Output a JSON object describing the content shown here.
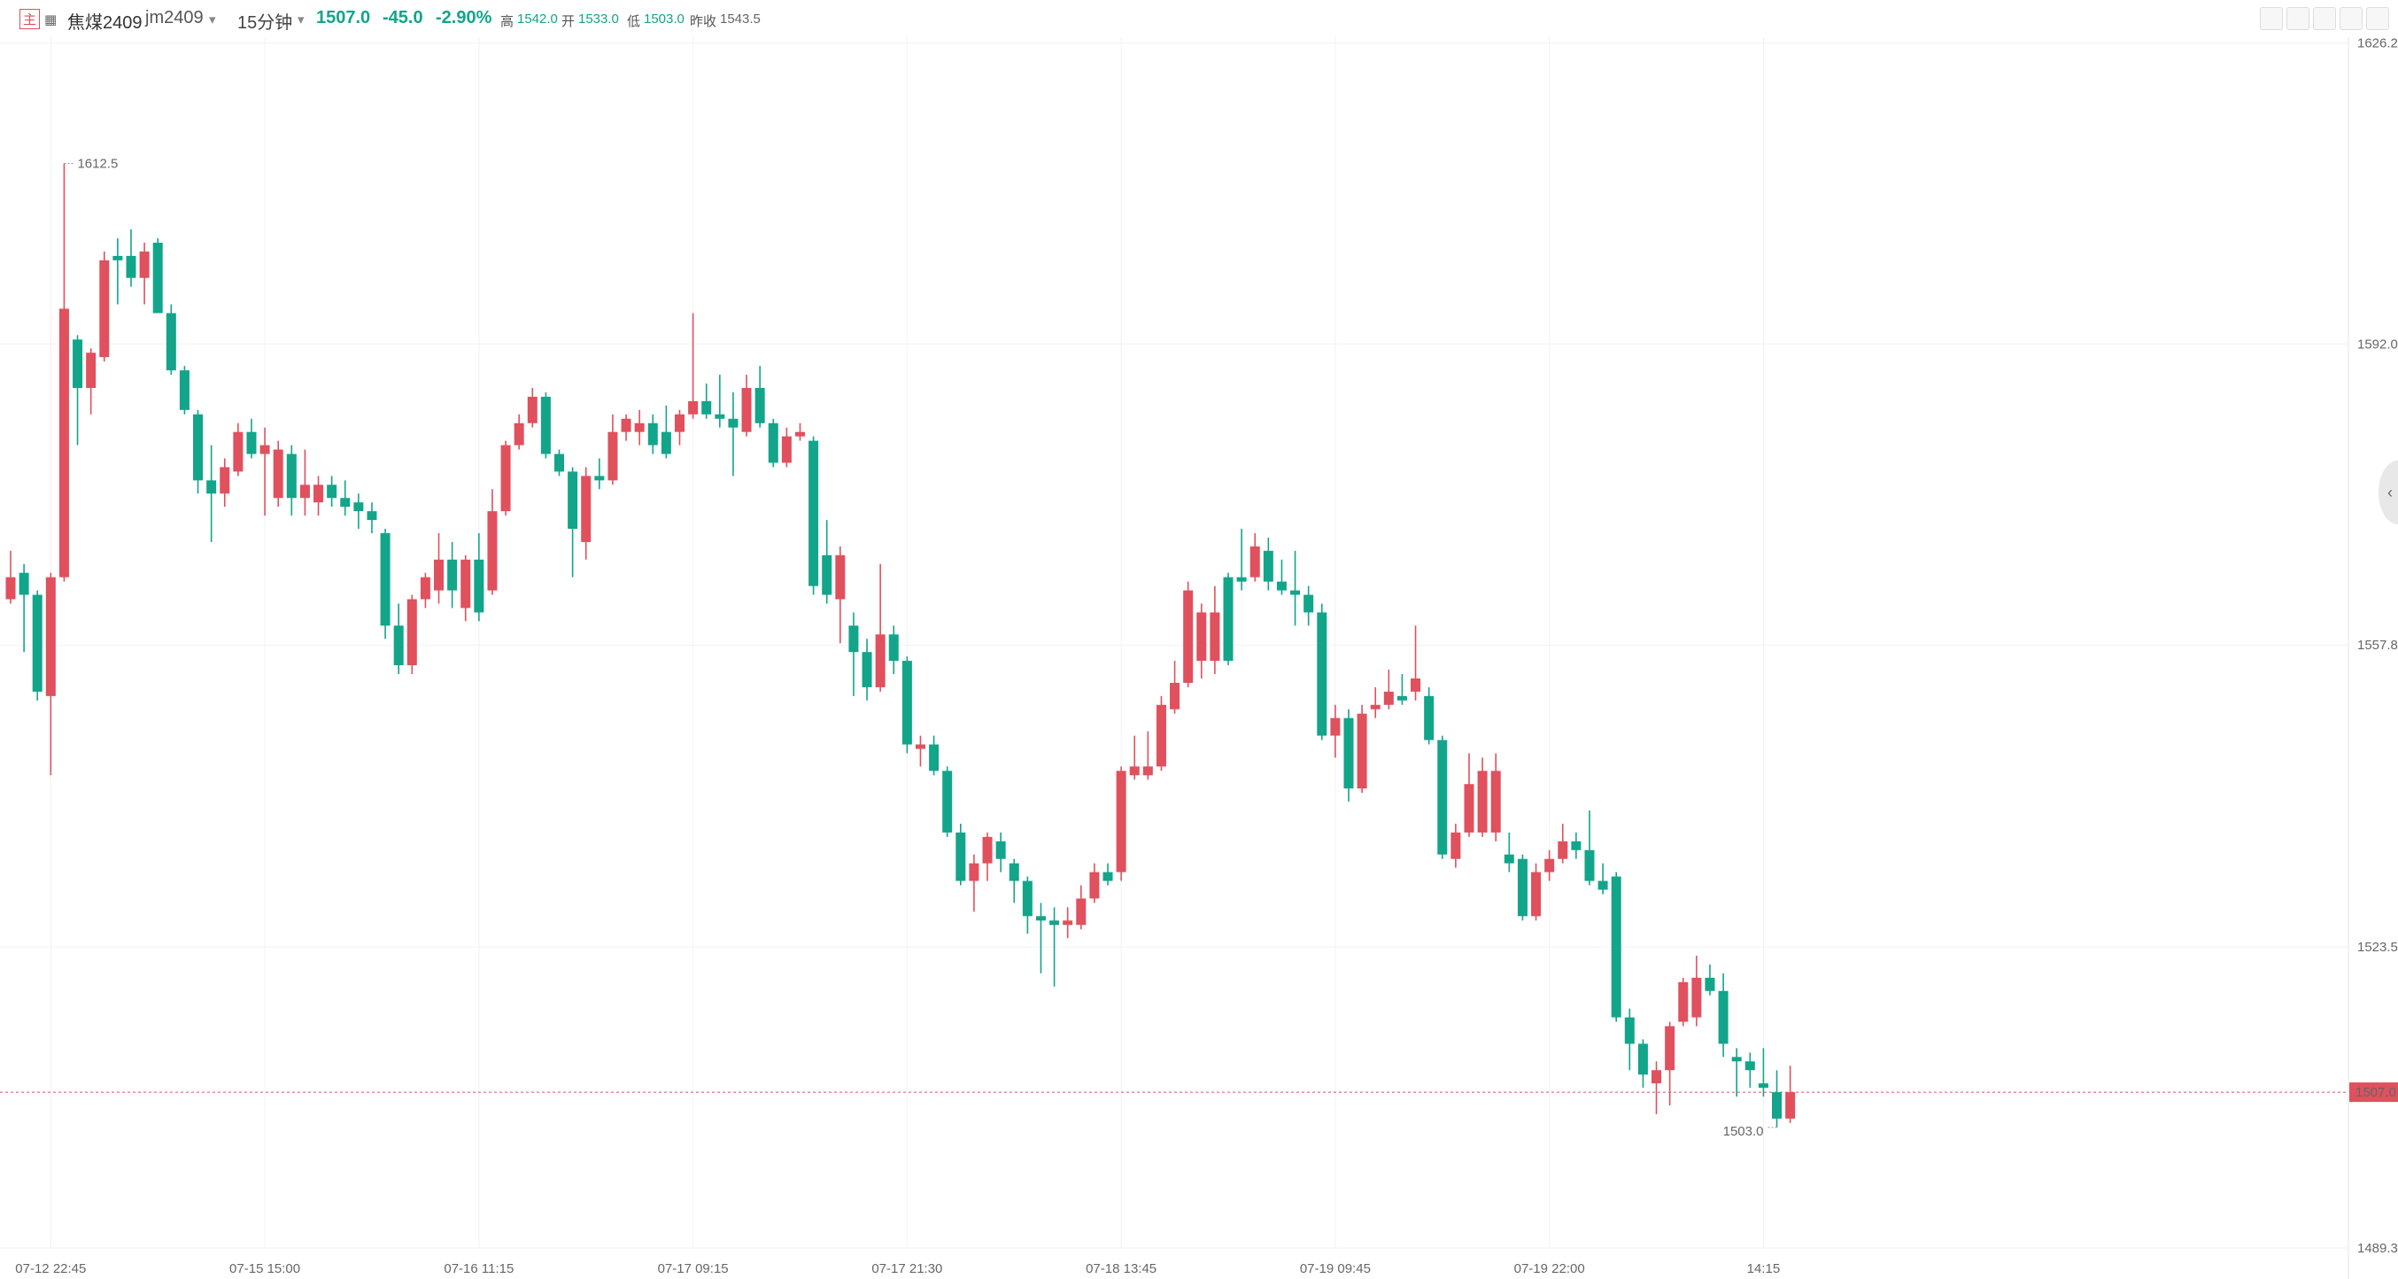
{
  "header": {
    "tag": "主",
    "name": "焦煤2409",
    "code": "jm2409",
    "period": "15分钟",
    "last": "1507.0",
    "change": "-45.0",
    "change_pct": "-2.90%",
    "high_label": "高",
    "high": "1542.0",
    "open_label": "开",
    "open": "1533.0",
    "low_label": "低",
    "low": "1503.0",
    "prev_close_label": "昨收",
    "prev_close": "1543.5"
  },
  "chart_data": {
    "type": "candlestick",
    "up_color": "#e0505d",
    "down_color": "#12a58a",
    "ylim": [
      1489.3,
      1626.2
    ],
    "yticks": [
      {
        "value": 1626.2,
        "label": "1626.2"
      },
      {
        "value": 1592,
        "label": "1592.0"
      },
      {
        "value": 1557.8,
        "label": "1557.8"
      },
      {
        "value": 1523.5,
        "label": "1523.5"
      },
      {
        "value": 1489.3,
        "label": "1489.3"
      }
    ],
    "ytick_colors": [
      "#e0505d",
      "#e0505d",
      "#e0505d",
      "#12a58a",
      "#12a58a"
    ],
    "xticks": [
      {
        "value": 3,
        "label": "07-12 22:45"
      },
      {
        "value": 19,
        "label": "07-15 15:00"
      },
      {
        "value": 35,
        "label": "07-16 11:15"
      },
      {
        "value": 51,
        "label": "07-17 09:15"
      },
      {
        "value": 67,
        "label": "07-17 21:30"
      },
      {
        "value": 83,
        "label": "07-18 13:45"
      },
      {
        "value": 99,
        "label": "07-19 09:45"
      },
      {
        "value": 115,
        "label": "07-19 22:00"
      },
      {
        "value": 131,
        "label": "14:15"
      }
    ],
    "grid": true,
    "last_price": {
      "value": 1507,
      "label": "1507.0"
    },
    "annotations": [
      {
        "index": 4,
        "value": 1612.5,
        "label": "1612.5"
      },
      {
        "index": 132,
        "value": 1503,
        "label": "1503.0"
      }
    ],
    "open": [
      1563,
      1566,
      1563.5,
      1552,
      1565.5,
      1592.5,
      1587,
      1590.5,
      1602,
      1602,
      1599.5,
      1603.5,
      1595.5,
      1589,
      1584,
      1576.5,
      1575,
      1577.5,
      1582,
      1579.5,
      1574.5,
      1579.5,
      1574.5,
      1574,
      1576,
      1574.5,
      1574,
      1573,
      1570.5,
      1560,
      1555.5,
      1563,
      1564,
      1567.5,
      1562,
      1567.5,
      1564,
      1573,
      1580.5,
      1583,
      1586,
      1579.5,
      1577.5,
      1569.5,
      1577,
      1576.5,
      1582,
      1582,
      1583,
      1582,
      1582,
      1584,
      1585.5,
      1584,
      1583.5,
      1582,
      1587,
      1583,
      1578.5,
      1581.5,
      1581,
      1568,
      1563,
      1560,
      1557,
      1553,
      1559,
      1556,
      1546,
      1546.5,
      1543.5,
      1536.5,
      1531,
      1533,
      1535.5,
      1533,
      1531,
      1527,
      1526.5,
      1526,
      1526,
      1529,
      1532,
      1532,
      1543,
      1543,
      1544,
      1550.5,
      1553.5,
      1556,
      1556,
      1565.5,
      1565.5,
      1565.5,
      1568.5,
      1565,
      1564,
      1563.5,
      1561.5,
      1547.5,
      1549.5,
      1541.5,
      1550.5,
      1551,
      1552,
      1552.5,
      1552,
      1547,
      1533.5,
      1536.5,
      1536.5,
      1536.5,
      1534,
      1533.5,
      1527,
      1532,
      1533.5,
      1535.5,
      1534.5,
      1531,
      1531.5,
      1515.5,
      1512.5,
      1508,
      1509.5,
      1515,
      1515.5,
      1520,
      1518.5,
      1511,
      1510.5,
      1508,
      1507,
      1504
    ],
    "high": [
      1568.5,
      1567,
      1564,
      1566,
      1612.5,
      1593,
      1591.5,
      1602.5,
      1604,
      1605,
      1603.5,
      1604,
      1596.5,
      1589.5,
      1584.5,
      1580.5,
      1579,
      1583,
      1583.5,
      1582.5,
      1581,
      1580.5,
      1580,
      1577,
      1577,
      1576.5,
      1575,
      1574,
      1571,
      1562.5,
      1563.5,
      1566,
      1570.5,
      1569.5,
      1568,
      1570.5,
      1575.5,
      1581,
      1584,
      1587,
      1586.5,
      1580,
      1578,
      1578,
      1579,
      1584,
      1584,
      1584.5,
      1584,
      1585,
      1584.5,
      1595.5,
      1587.5,
      1588.5,
      1586.5,
      1588.5,
      1589.5,
      1583.5,
      1582.5,
      1583,
      1581.5,
      1572,
      1569,
      1561.5,
      1558.5,
      1567,
      1560,
      1556.5,
      1547.5,
      1547.5,
      1544,
      1537.5,
      1534,
      1536.5,
      1536.5,
      1533.5,
      1531.5,
      1528.5,
      1528,
      1528,
      1530.5,
      1533,
      1533,
      1544,
      1547.5,
      1548,
      1552,
      1556,
      1565,
      1562.5,
      1564.5,
      1566,
      1571,
      1570.5,
      1570,
      1567.5,
      1568.5,
      1564.5,
      1562.5,
      1551,
      1550.5,
      1551,
      1553,
      1555,
      1554.5,
      1560,
      1553,
      1547.5,
      1537.5,
      1545.5,
      1545,
      1545.5,
      1536.5,
      1534,
      1533,
      1534.5,
      1537.5,
      1536.5,
      1539,
      1533,
      1532,
      1516.5,
      1513,
      1510.5,
      1515,
      1520,
      1522.5,
      1521.5,
      1520.5,
      1512,
      1511.5,
      1512,
      1509.5,
      1510
    ],
    "low": [
      1562.5,
      1557,
      1551.5,
      1543,
      1565,
      1580.5,
      1584,
      1590,
      1596.5,
      1598.5,
      1596.5,
      1595.5,
      1588.5,
      1584,
      1575,
      1569.5,
      1573.5,
      1577,
      1579,
      1572.5,
      1573.5,
      1572.5,
      1572.5,
      1572.5,
      1573.5,
      1572.5,
      1571,
      1570.5,
      1558.5,
      1554.5,
      1554.5,
      1562,
      1562.5,
      1562,
      1560.5,
      1560.5,
      1563.5,
      1572.5,
      1580,
      1582.5,
      1579,
      1577,
      1565.5,
      1567.5,
      1575.5,
      1576,
      1581,
      1580.5,
      1579.5,
      1579,
      1580.5,
      1583.5,
      1583.5,
      1582.5,
      1577,
      1581.5,
      1582.5,
      1578,
      1578,
      1581,
      1563.5,
      1562.5,
      1558,
      1552,
      1551.5,
      1552.5,
      1554.5,
      1545.5,
      1544,
      1543,
      1536,
      1530.5,
      1527.5,
      1531,
      1532,
      1528.5,
      1525,
      1520.5,
      1519,
      1524.5,
      1525.5,
      1528.5,
      1530.5,
      1531,
      1542.5,
      1542.5,
      1543.5,
      1550,
      1553,
      1554,
      1554.5,
      1555.5,
      1564,
      1565,
      1564,
      1563.5,
      1560,
      1560,
      1547,
      1545,
      1540,
      1541,
      1549.5,
      1550.5,
      1551,
      1551.5,
      1546.5,
      1533.5,
      1532.5,
      1536,
      1536,
      1535.5,
      1532,
      1526.5,
      1526.5,
      1531,
      1533,
      1533.5,
      1530.5,
      1529.5,
      1515,
      1509.5,
      1507.5,
      1504.5,
      1505.5,
      1514.5,
      1514.5,
      1518,
      1511,
      1506.5,
      1507.5,
      1506.5,
      1503,
      1503.5
    ],
    "close": [
      1565.5,
      1563.5,
      1552.5,
      1565.5,
      1596,
      1587,
      1591,
      1601.5,
      1601.5,
      1599.5,
      1602.5,
      1595.5,
      1589,
      1584.5,
      1576.5,
      1575,
      1578,
      1582,
      1579.5,
      1580.5,
      1580,
      1574.5,
      1576,
      1576,
      1574.5,
      1573.5,
      1573,
      1572,
      1560,
      1555.5,
      1563,
      1565.5,
      1567.5,
      1564,
      1567.5,
      1561.5,
      1573,
      1580.5,
      1583,
      1586,
      1579.5,
      1577.5,
      1571,
      1577,
      1576.5,
      1582,
      1583.5,
      1583,
      1580.5,
      1579.5,
      1584,
      1585.5,
      1584,
      1583.5,
      1582.5,
      1587,
      1583,
      1578.5,
      1581.5,
      1582,
      1564.5,
      1563.5,
      1568,
      1557,
      1553,
      1559,
      1556,
      1546.5,
      1546.5,
      1543.5,
      1536.5,
      1531,
      1533,
      1536,
      1533.5,
      1531,
      1527,
      1526.5,
      1526,
      1526.5,
      1529,
      1532,
      1531,
      1543.5,
      1544,
      1544,
      1551,
      1553.5,
      1564,
      1561.5,
      1561.5,
      1556,
      1565,
      1569,
      1565,
      1564,
      1563.5,
      1561.5,
      1547.5,
      1549.5,
      1541.5,
      1550,
      1551,
      1552.5,
      1551.5,
      1554,
      1547,
      1534,
      1536.5,
      1542,
      1543.5,
      1543.5,
      1533,
      1527,
      1532,
      1533.5,
      1535.5,
      1534.5,
      1531,
      1530,
      1515.5,
      1512.5,
      1509,
      1509.5,
      1514.5,
      1519.5,
      1520,
      1518.5,
      1512.5,
      1510.5,
      1509.5,
      1507.5,
      1504,
      1507
    ]
  }
}
